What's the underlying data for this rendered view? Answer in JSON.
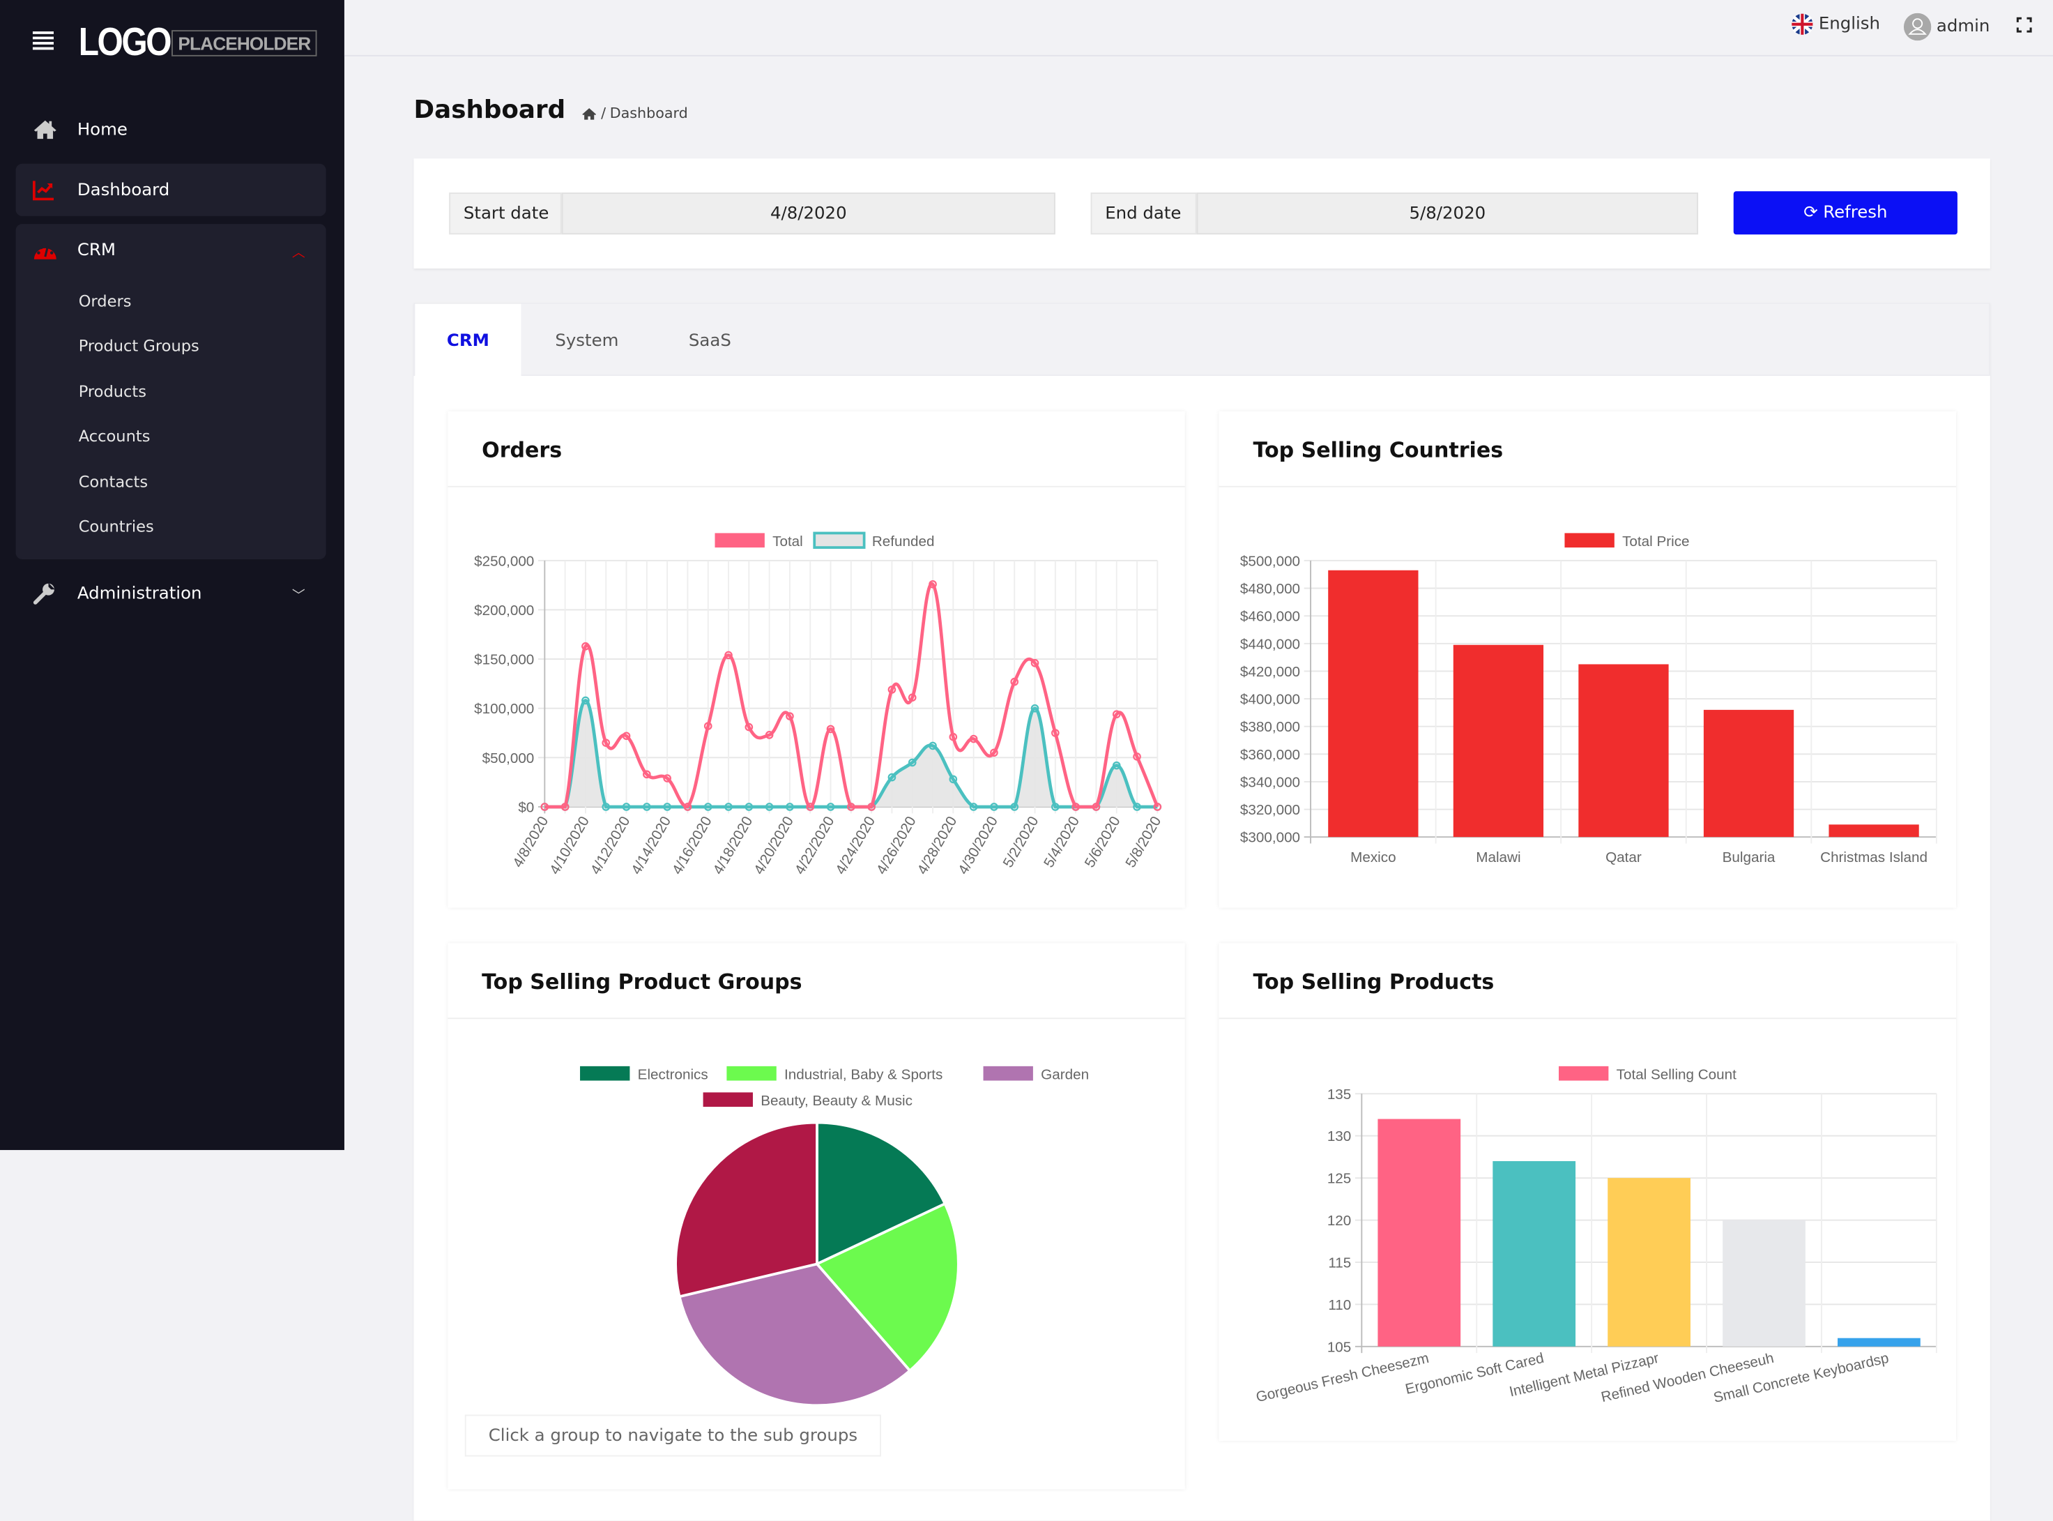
{
  "sidebar": {
    "logo_text": "LOGO",
    "logo_sub": "PLACEHOLDER",
    "home": "Home",
    "dashboard": "Dashboard",
    "crm": "CRM",
    "crm_items": [
      "Orders",
      "Product Groups",
      "Products",
      "Accounts",
      "Contacts",
      "Countries"
    ],
    "administration": "Administration"
  },
  "topbar": {
    "language": "English",
    "user": "admin"
  },
  "page": {
    "title": "Dashboard",
    "breadcrumb": "Dashboard"
  },
  "filters": {
    "start_label": "Start date",
    "start_value": "4/8/2020",
    "end_label": "End date",
    "end_value": "5/8/2020",
    "refresh": "Refresh"
  },
  "tabs": [
    "CRM",
    "System",
    "SaaS"
  ],
  "colors": {
    "accent": "#0b10f5",
    "sidebar": "#13131f",
    "danger": "#e00000"
  },
  "cards": {
    "orders": "Orders",
    "countries": "Top Selling Countries",
    "groups": "Top Selling Product Groups",
    "products": "Top Selling Products",
    "groups_hint": "Click a group to navigate to the sub groups"
  },
  "chart_data": [
    {
      "type": "line",
      "title": "Orders",
      "ylim": [
        0,
        250000
      ],
      "yticks": [
        "$0",
        "$50,000",
        "$100,000",
        "$150,000",
        "$200,000",
        "$250,000"
      ],
      "x": [
        "4/8/2020",
        "4/9/2020",
        "4/10/2020",
        "4/11/2020",
        "4/12/2020",
        "4/13/2020",
        "4/14/2020",
        "4/15/2020",
        "4/16/2020",
        "4/17/2020",
        "4/18/2020",
        "4/19/2020",
        "4/20/2020",
        "4/21/2020",
        "4/22/2020",
        "4/23/2020",
        "4/24/2020",
        "4/25/2020",
        "4/26/2020",
        "4/27/2020",
        "4/28/2020",
        "4/29/2020",
        "4/30/2020",
        "5/1/2020",
        "5/2/2020",
        "5/3/2020",
        "5/4/2020",
        "5/5/2020",
        "5/6/2020",
        "5/7/2020",
        "5/8/2020"
      ],
      "series": [
        {
          "name": "Total",
          "color": "#ff6384",
          "values": [
            0,
            0,
            163000,
            65000,
            72000,
            33000,
            29000,
            0,
            82000,
            154000,
            81000,
            73000,
            92000,
            0,
            79000,
            0,
            0,
            119000,
            111000,
            226000,
            71000,
            69000,
            55000,
            127000,
            146000,
            75000,
            0,
            0,
            94000,
            51000,
            0
          ]
        },
        {
          "name": "Refunded",
          "color": "#4bc0c0",
          "fill": "#e4e4e4",
          "values": [
            0,
            0,
            108000,
            0,
            0,
            0,
            0,
            0,
            0,
            0,
            0,
            0,
            0,
            0,
            0,
            0,
            0,
            30000,
            45000,
            62000,
            28000,
            0,
            0,
            0,
            100000,
            0,
            0,
            0,
            42000,
            0,
            0
          ]
        }
      ],
      "legend": "top",
      "grid": true
    },
    {
      "type": "bar",
      "title": "Top Selling Countries",
      "ylim": [
        300000,
        500000
      ],
      "yticks": [
        "$300,000",
        "$320,000",
        "$340,000",
        "$360,000",
        "$380,000",
        "$400,000",
        "$420,000",
        "$440,000",
        "$460,000",
        "$480,000",
        "$500,000"
      ],
      "categories": [
        "Mexico",
        "Malawi",
        "Qatar",
        "Bulgaria",
        "Christmas Island"
      ],
      "series": [
        {
          "name": "Total Price",
          "color": "#f02d2d",
          "values": [
            493000,
            439000,
            425000,
            392000,
            309000
          ]
        }
      ],
      "legend": "top",
      "grid": true
    },
    {
      "type": "pie",
      "title": "Top Selling Product Groups",
      "categories": [
        "Electronics",
        "Industrial, Baby & Sports",
        "Garden",
        "Beauty, Beauty & Music"
      ],
      "values": [
        18,
        20.6,
        32.7,
        28.7
      ],
      "colors": [
        "#057a55",
        "#6cfa4e",
        "#b074b0",
        "#b01846"
      ],
      "legend": "top"
    },
    {
      "type": "bar",
      "title": "Top Selling Products",
      "ylim": [
        105,
        135
      ],
      "yticks": [
        "105",
        "110",
        "115",
        "120",
        "125",
        "130",
        "135"
      ],
      "categories": [
        "Gorgeous Fresh Cheesezm",
        "Ergonomic Soft Cared",
        "Intelligent Metal Pizzapr",
        "Refined Wooden Cheeseuh",
        "Small Concrete Keyboardsp"
      ],
      "series": [
        {
          "name": "Total Selling Count",
          "color": "#ff6384",
          "values": [
            132,
            127,
            125,
            120,
            106
          ]
        }
      ],
      "bar_colors": [
        "#ff6384",
        "#4bc0c0",
        "#ffcd56",
        "#e7e8eb",
        "#36a2eb"
      ],
      "legend": "top",
      "grid": true
    }
  ]
}
